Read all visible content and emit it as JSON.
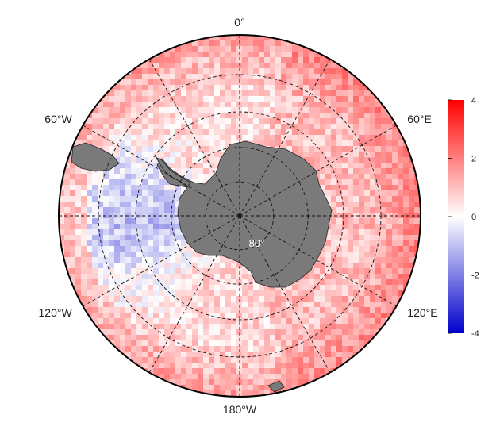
{
  "map": {
    "projection": "south-polar-stereographic",
    "land_color": "#7a7a7a",
    "ocean_outline_color": "#000000",
    "graticule": {
      "latitude_circles_deg": [
        -80,
        -70,
        -60,
        -50
      ],
      "meridians_deg": [
        0,
        30,
        60,
        90,
        120,
        150,
        180,
        -30,
        -60,
        -90,
        -120,
        -150
      ],
      "style": "dashed"
    },
    "longitude_labels": [
      {
        "text": "0°",
        "lon": 0
      },
      {
        "text": "60°E",
        "lon": 60
      },
      {
        "text": "120°E",
        "lon": 120
      },
      {
        "text": "180°W",
        "lon": 180
      },
      {
        "text": "120°W",
        "lon": -120
      },
      {
        "text": "60°W",
        "lon": -60
      }
    ],
    "latitude_label": {
      "text": "80°",
      "lat": -80
    }
  },
  "colorbar": {
    "min": -4,
    "max": 4,
    "ticks": [
      {
        "value": 4,
        "label": "4"
      },
      {
        "value": 2,
        "label": "2"
      },
      {
        "value": 0,
        "label": "0"
      },
      {
        "value": -2,
        "label": "-2"
      },
      {
        "value": -4,
        "label": "-4"
      }
    ],
    "colors": {
      "low": "#0000cc",
      "mid": "#ffffff",
      "high": "#ff0000"
    }
  }
}
